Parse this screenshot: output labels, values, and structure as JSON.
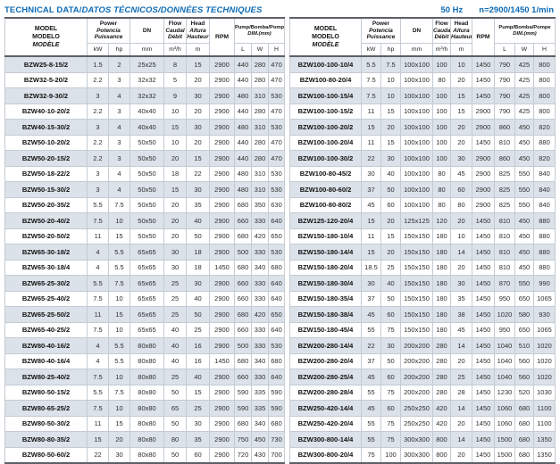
{
  "page": {
    "title_upright": "TECHNICAL DATA/",
    "title_italic": "DATOS TÉCNICOS/DONNÉES TECHNIQUES",
    "frequency": "50 Hz",
    "speed": "n=2900/1450 1/min"
  },
  "colors": {
    "accent_blue": "#0f6cb5",
    "stripe_row": "#dbe2e9",
    "heavy_border": "#5c6166",
    "light_border": "#c4cbd3"
  },
  "table_header": {
    "model": [
      "MODEL",
      "MODELO",
      "MODÈLE"
    ],
    "power": [
      "Power",
      "Potencia",
      "Puissance"
    ],
    "dn": "DN",
    "flow": [
      "Flow",
      "Caudal",
      "Débit"
    ],
    "head": [
      "Head",
      "Altura",
      "Hauteur"
    ],
    "rpm": "RPM",
    "pump_dim": {
      "line1_upright": "Pump/",
      "line1_italic": "Bomba/Pompe",
      "line2": "DIM.(mm)"
    },
    "units": {
      "kw": "kW",
      "hp": "hp",
      "mm": "mm",
      "flow": "m³/h",
      "head": "m",
      "l": "L",
      "w": "W",
      "h": "H"
    }
  },
  "left_table": {
    "rows": [
      [
        "BZW25-8-15/2",
        "1.5",
        "2",
        "25x25",
        "8",
        "15",
        "2900",
        "440",
        "280",
        "470"
      ],
      [
        "BZW32-5-20/2",
        "2.2",
        "3",
        "32x32",
        "5",
        "20",
        "2900",
        "440",
        "280",
        "470"
      ],
      [
        "BZW32-9-30/2",
        "3",
        "4",
        "32x32",
        "9",
        "30",
        "2900",
        "480",
        "310",
        "530"
      ],
      [
        "BZW40-10-20/2",
        "2.2",
        "3",
        "40x40",
        "10",
        "20",
        "2900",
        "440",
        "280",
        "470"
      ],
      [
        "BZW40-15-30/2",
        "3",
        "4",
        "40x40",
        "15",
        "30",
        "2900",
        "480",
        "310",
        "530"
      ],
      [
        "BZW50-10-20/2",
        "2.2",
        "3",
        "50x50",
        "10",
        "20",
        "2900",
        "440",
        "280",
        "470"
      ],
      [
        "BZW50-20-15/2",
        "2.2",
        "3",
        "50x50",
        "20",
        "15",
        "2900",
        "440",
        "280",
        "470"
      ],
      [
        "BZW50-18-22/2",
        "3",
        "4",
        "50x50",
        "18",
        "22",
        "2900",
        "480",
        "310",
        "530"
      ],
      [
        "BZW50-15-30/2",
        "3",
        "4",
        "50x50",
        "15",
        "30",
        "2900",
        "480",
        "310",
        "530"
      ],
      [
        "BZW50-20-35/2",
        "5.5",
        "7.5",
        "50x50",
        "20",
        "35",
        "2900",
        "680",
        "350",
        "630"
      ],
      [
        "BZW50-20-40/2",
        "7.5",
        "10",
        "50x50",
        "20",
        "40",
        "2900",
        "660",
        "330",
        "640"
      ],
      [
        "BZW50-20-50/2",
        "11",
        "15",
        "50x50",
        "20",
        "50",
        "2900",
        "680",
        "420",
        "650"
      ],
      [
        "BZW65-30-18/2",
        "4",
        "5.5",
        "65x65",
        "30",
        "18",
        "2900",
        "500",
        "330",
        "530"
      ],
      [
        "BZW65-30-18/4",
        "4",
        "5.5",
        "65x65",
        "30",
        "18",
        "1450",
        "680",
        "340",
        "680"
      ],
      [
        "BZW65-25-30/2",
        "5.5",
        "7.5",
        "65x65",
        "25",
        "30",
        "2900",
        "660",
        "330",
        "640"
      ],
      [
        "BZW65-25-40/2",
        "7.5",
        "10",
        "65x65",
        "25",
        "40",
        "2900",
        "660",
        "330",
        "640"
      ],
      [
        "BZW65-25-50/2",
        "11",
        "15",
        "65x65",
        "25",
        "50",
        "2900",
        "680",
        "420",
        "650"
      ],
      [
        "BZW65-40-25/2",
        "7.5",
        "10",
        "65x65",
        "40",
        "25",
        "2900",
        "660",
        "330",
        "640"
      ],
      [
        "BZW80-40-16/2",
        "4",
        "5.5",
        "80x80",
        "40",
        "16",
        "2900",
        "500",
        "330",
        "530"
      ],
      [
        "BZW80-40-16/4",
        "4",
        "5.5",
        "80x80",
        "40",
        "16",
        "1450",
        "680",
        "340",
        "680"
      ],
      [
        "BZW80-25-40/2",
        "7.5",
        "10",
        "80x80",
        "25",
        "40",
        "2900",
        "660",
        "330",
        "640"
      ],
      [
        "BZW80-50-15/2",
        "5.5",
        "7.5",
        "80x80",
        "50",
        "15",
        "2900",
        "590",
        "335",
        "590"
      ],
      [
        "BZW80-65-25/2",
        "7.5",
        "10",
        "80x80",
        "65",
        "25",
        "2900",
        "590",
        "335",
        "590"
      ],
      [
        "BZW80-50-30/2",
        "11",
        "15",
        "80x80",
        "50",
        "30",
        "2900",
        "680",
        "340",
        "680"
      ],
      [
        "BZW80-80-35/2",
        "15",
        "20",
        "80x80",
        "80",
        "35",
        "2900",
        "750",
        "450",
        "730"
      ],
      [
        "BZW80-50-60/2",
        "22",
        "30",
        "80x80",
        "50",
        "60",
        "2900",
        "720",
        "430",
        "700"
      ]
    ]
  },
  "right_table": {
    "rows": [
      [
        "BZW100-100-10/4",
        "5.5",
        "7.5",
        "100x100",
        "100",
        "10",
        "1450",
        "790",
        "425",
        "800"
      ],
      [
        "BZW100-80-20/4",
        "7.5",
        "10",
        "100x100",
        "80",
        "20",
        "1450",
        "790",
        "425",
        "800"
      ],
      [
        "BZW100-100-15/4",
        "7.5",
        "10",
        "100x100",
        "100",
        "15",
        "1450",
        "790",
        "425",
        "800"
      ],
      [
        "BZW100-100-15/2",
        "11",
        "15",
        "100x100",
        "100",
        "15",
        "2900",
        "790",
        "425",
        "800"
      ],
      [
        "BZW100-100-20/2",
        "15",
        "20",
        "100x100",
        "100",
        "20",
        "2900",
        "860",
        "450",
        "820"
      ],
      [
        "BZW100-100-20/4",
        "11",
        "15",
        "100x100",
        "100",
        "20",
        "1450",
        "810",
        "450",
        "880"
      ],
      [
        "BZW100-100-30/2",
        "22",
        "30",
        "100x100",
        "100",
        "30",
        "2900",
        "860",
        "450",
        "820"
      ],
      [
        "BZW100-80-45/2",
        "30",
        "40",
        "100x100",
        "80",
        "45",
        "2900",
        "825",
        "550",
        "840"
      ],
      [
        "BZW100-80-60/2",
        "37",
        "50",
        "100x100",
        "80",
        "60",
        "2900",
        "825",
        "550",
        "840"
      ],
      [
        "BZW100-80-80/2",
        "45",
        "60",
        "100x100",
        "80",
        "80",
        "2900",
        "825",
        "550",
        "840"
      ],
      [
        "BZW125-120-20/4",
        "15",
        "20",
        "125x125",
        "120",
        "20",
        "1450",
        "810",
        "450",
        "880"
      ],
      [
        "BZW150-180-10/4",
        "11",
        "15",
        "150x150",
        "180",
        "10",
        "1450",
        "810",
        "450",
        "880"
      ],
      [
        "BZW150-180-14/4",
        "15",
        "20",
        "150x150",
        "180",
        "14",
        "1450",
        "810",
        "450",
        "880"
      ],
      [
        "BZW150-180-20/4",
        "18.5",
        "25",
        "150x150",
        "180",
        "20",
        "1450",
        "810",
        "450",
        "880"
      ],
      [
        "BZW150-180-30/4",
        "30",
        "40",
        "150x150",
        "180",
        "30",
        "1450",
        "870",
        "550",
        "990"
      ],
      [
        "BZW150-180-35/4",
        "37",
        "50",
        "150x150",
        "180",
        "35",
        "1450",
        "950",
        "650",
        "1065"
      ],
      [
        "BZW150-180-38/4",
        "45",
        "60",
        "150x150",
        "180",
        "38",
        "1450",
        "1020",
        "580",
        "930"
      ],
      [
        "BZW150-180-45/4",
        "55",
        "75",
        "150x150",
        "180",
        "45",
        "1450",
        "950",
        "650",
        "1065"
      ],
      [
        "BZW200-280-14/4",
        "22",
        "30",
        "200x200",
        "280",
        "14",
        "1450",
        "1040",
        "510",
        "1020"
      ],
      [
        "BZW200-280-20/4",
        "37",
        "50",
        "200x200",
        "280",
        "20",
        "1450",
        "1040",
        "560",
        "1020"
      ],
      [
        "BZW200-280-25/4",
        "45",
        "60",
        "200x200",
        "280",
        "25",
        "1450",
        "1040",
        "560",
        "1020"
      ],
      [
        "BZW200-280-28/4",
        "55",
        "75",
        "200x200",
        "280",
        "28",
        "1450",
        "1230",
        "520",
        "1030"
      ],
      [
        "BZW250-420-14/4",
        "45",
        "60",
        "250x250",
        "420",
        "14",
        "1450",
        "1060",
        "680",
        "1100"
      ],
      [
        "BZW250-420-20/4",
        "55",
        "75",
        "250x250",
        "420",
        "20",
        "1450",
        "1060",
        "680",
        "1100"
      ],
      [
        "BZW300-800-14/4",
        "55",
        "75",
        "300x300",
        "800",
        "14",
        "1450",
        "1500",
        "680",
        "1350"
      ],
      [
        "BZW300-800-20/4",
        "75",
        "100",
        "300x300",
        "800",
        "20",
        "1450",
        "1500",
        "680",
        "1350"
      ]
    ]
  }
}
